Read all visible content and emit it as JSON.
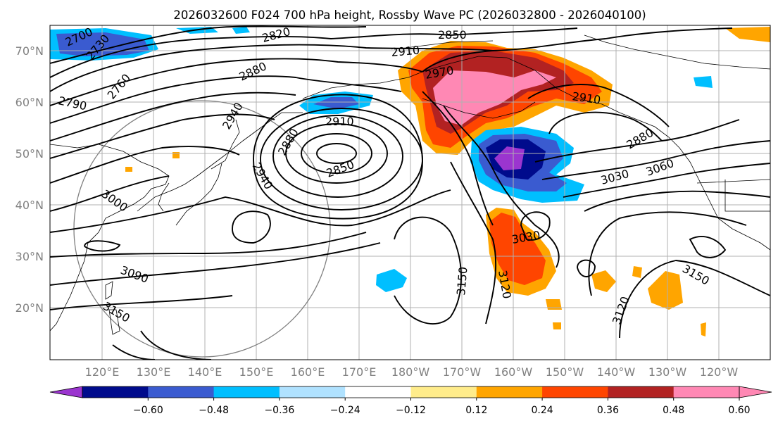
{
  "title": "2026032600 F024 700 hPa height, Rossby Wave PC (2026032800 - 2026040100)",
  "lat_labels": [
    "70°N",
    "60°N",
    "50°N",
    "40°N",
    "30°N",
    "20°N"
  ],
  "lon_labels": [
    "120°E",
    "130°E",
    "140°E",
    "150°E",
    "160°E",
    "170°E",
    "180°W",
    "170°W",
    "160°W",
    "150°W",
    "140°W",
    "130°W",
    "120°W"
  ],
  "contour_labels": [
    "2700",
    "2730",
    "2760",
    "2790",
    "2820",
    "2850",
    "2910",
    "2880",
    "2970",
    "2910",
    "2940",
    "2910",
    "2880",
    "2850",
    "2940",
    "2880",
    "3000",
    "3030",
    "3060",
    "3030",
    "3090",
    "3150",
    "3150",
    "3120",
    "3120",
    "3150"
  ],
  "colorbar": {
    "ticks": [
      "−0.60",
      "−0.48",
      "−0.36",
      "−0.24",
      "−0.12",
      "0.12",
      "0.24",
      "0.36",
      "0.48",
      "0.60"
    ],
    "colors": [
      "#9b35cf",
      "#000b8c",
      "#3a5bd0",
      "#00bfff",
      "#b0e2ff",
      "#ffffff",
      "#ffec8b",
      "#ffa500",
      "#ff4500",
      "#b22222",
      "#ff88b4",
      "#ff88b4"
    ]
  }
}
